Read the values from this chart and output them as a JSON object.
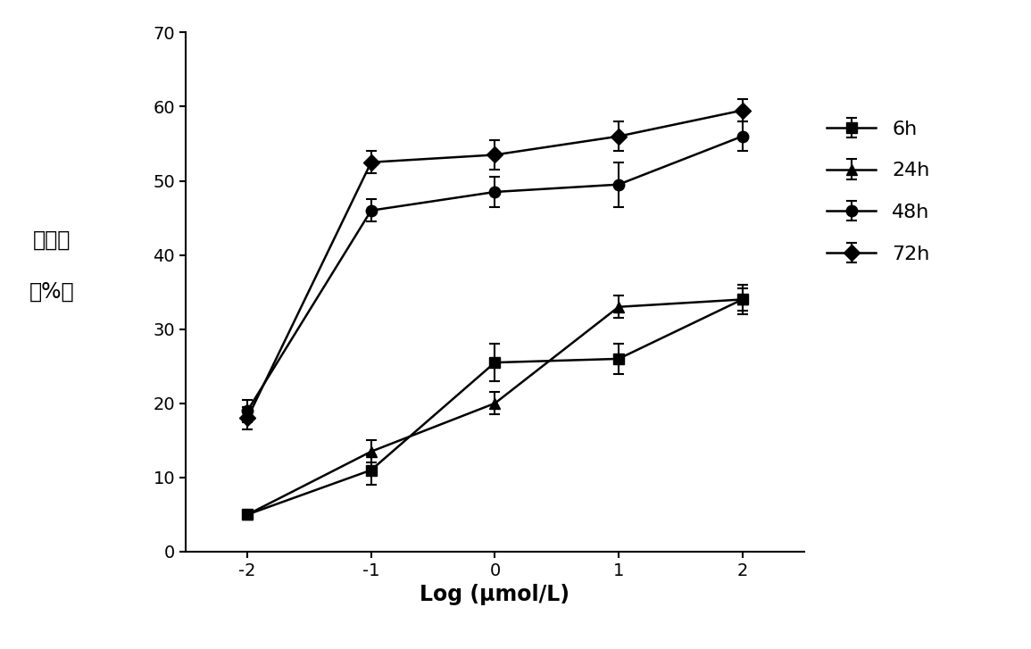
{
  "x": [
    -2,
    -1,
    0,
    1,
    2
  ],
  "series_order": [
    "6h",
    "24h",
    "48h",
    "72h"
  ],
  "series": {
    "6h": {
      "y": [
        5.0,
        11.0,
        25.5,
        26.0,
        34.0
      ],
      "yerr": [
        0.5,
        2.0,
        2.5,
        2.0,
        2.0
      ],
      "marker": "s",
      "label": "6h"
    },
    "24h": {
      "y": [
        5.0,
        13.5,
        20.0,
        33.0,
        34.0
      ],
      "yerr": [
        0.5,
        1.5,
        1.5,
        1.5,
        1.5
      ],
      "marker": "^",
      "label": "24h"
    },
    "48h": {
      "y": [
        19.0,
        46.0,
        48.5,
        49.5,
        56.0
      ],
      "yerr": [
        1.5,
        1.5,
        2.0,
        3.0,
        2.0
      ],
      "marker": "o",
      "label": "48h"
    },
    "72h": {
      "y": [
        18.0,
        52.5,
        53.5,
        56.0,
        59.5
      ],
      "yerr": [
        1.5,
        1.5,
        2.0,
        2.0,
        1.5
      ],
      "marker": "D",
      "label": "72h"
    }
  },
  "xlabel": "Log (μmol/L)",
  "ylabel_line1": "抑制率",
  "ylabel_line2": "（%）",
  "xlim": [
    -2.5,
    2.5
  ],
  "ylim": [
    0,
    70
  ],
  "yticks": [
    0,
    10,
    20,
    30,
    40,
    50,
    60,
    70
  ],
  "xticks": [
    -2,
    -1,
    0,
    1,
    2
  ],
  "xtick_labels": [
    "-2",
    "-1",
    "0",
    "1",
    "2"
  ],
  "color": "#000000",
  "linewidth": 1.8,
  "markersize": 9,
  "legend_fontsize": 16,
  "tick_fontsize": 14,
  "xlabel_fontsize": 17,
  "xlabel_fontweight": "bold",
  "ylabel_fontsize": 17
}
